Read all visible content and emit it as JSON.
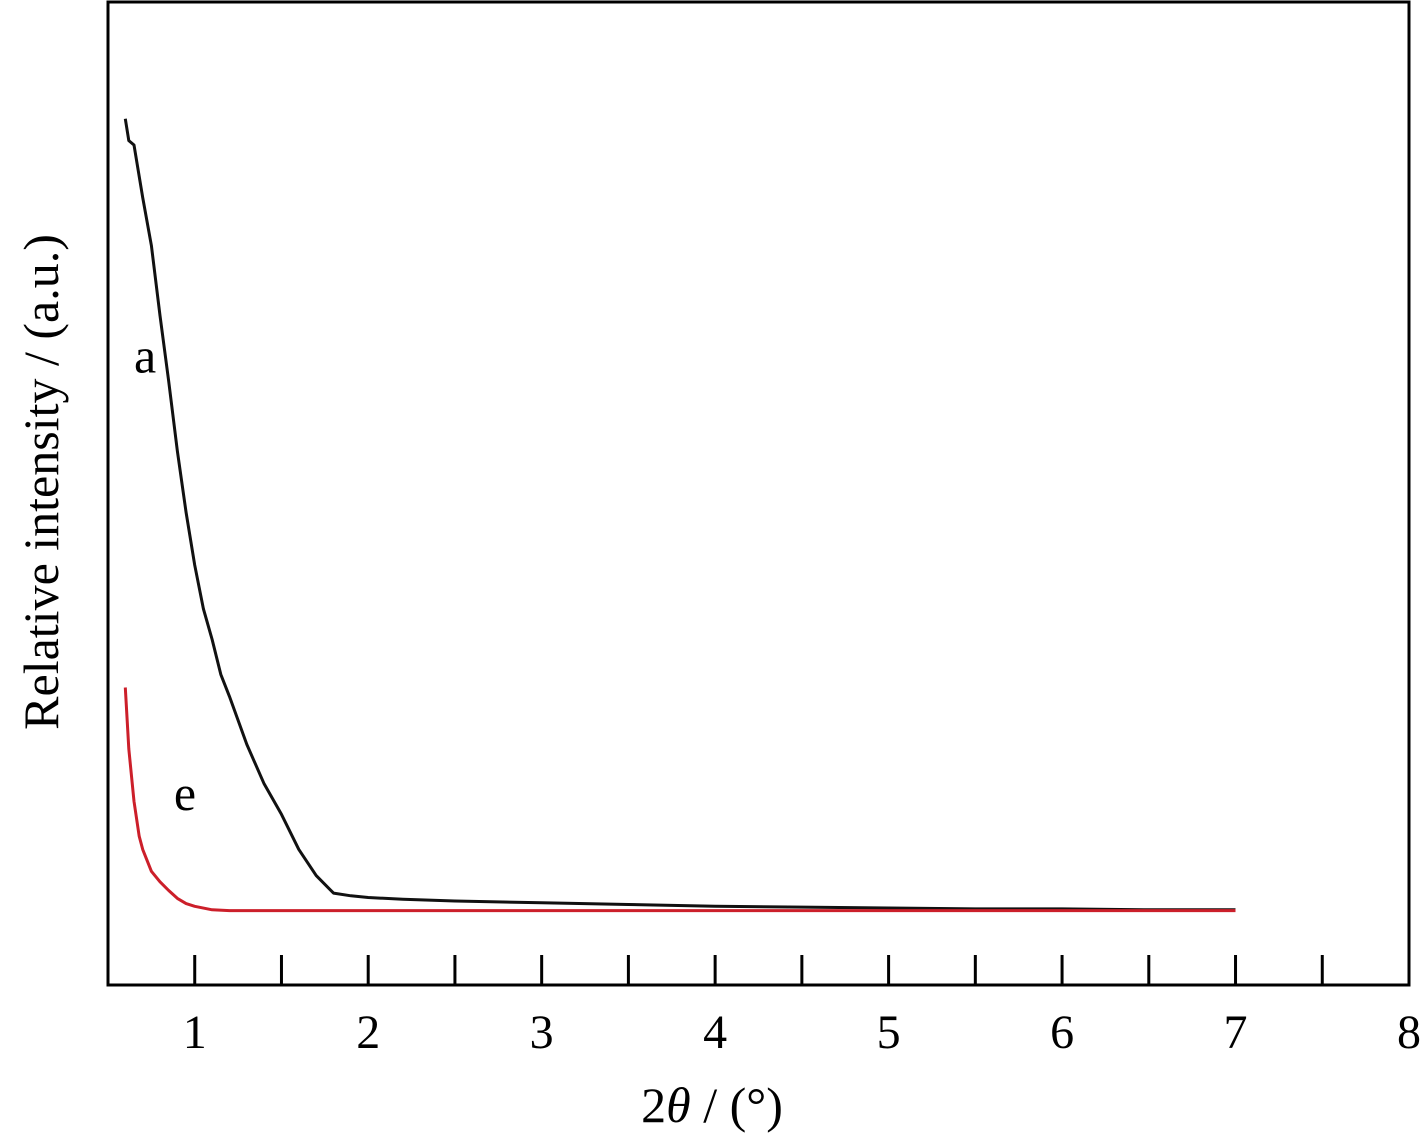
{
  "chart_data": {
    "type": "line",
    "xlabel": "2θ / (°)",
    "xlabel_parts": {
      "var": "2",
      "theta": "θ",
      "unit": " / (°)"
    },
    "ylabel": "Relative intensity / (a.u.)",
    "xlim": [
      0.5,
      8
    ],
    "ylim": [
      0,
      100
    ],
    "x_ticks_major": [
      1,
      2,
      3,
      4,
      5,
      6,
      7,
      8
    ],
    "x_ticks_minor": [
      1.5,
      2.5,
      3.5,
      4.5,
      5.5,
      6.5,
      7.5
    ],
    "y_ticks": [],
    "grid": false,
    "colors": {
      "a": "#111111",
      "e": "#cc1f2a",
      "frame": "#000000"
    },
    "series": [
      {
        "name": "a",
        "label_at": {
          "x": 0.65,
          "y": 70.0
        },
        "x": [
          0.6,
          0.62,
          0.65,
          0.7,
          0.75,
          0.8,
          0.85,
          0.9,
          0.95,
          1.0,
          1.05,
          1.1,
          1.15,
          1.2,
          1.3,
          1.4,
          1.5,
          1.6,
          1.7,
          1.8,
          1.9,
          2.0,
          2.2,
          2.5,
          3.0,
          3.5,
          4.0,
          4.5,
          5.0,
          5.5,
          6.0,
          6.5,
          7.0
        ],
        "y": [
          99.0,
          96.5,
          96.0,
          90.0,
          84.5,
          76.5,
          69.0,
          61.0,
          54.0,
          48.0,
          43.0,
          39.5,
          35.5,
          33.0,
          27.5,
          23.0,
          19.5,
          15.5,
          12.5,
          10.5,
          10.2,
          10.0,
          9.8,
          9.6,
          9.4,
          9.2,
          9.0,
          8.9,
          8.8,
          8.7,
          8.7,
          8.6,
          8.6
        ]
      },
      {
        "name": "e",
        "label_at": {
          "x": 0.88,
          "y": 20.0
        },
        "x": [
          0.6,
          0.62,
          0.65,
          0.68,
          0.7,
          0.75,
          0.8,
          0.85,
          0.9,
          0.95,
          1.0,
          1.1,
          1.2,
          1.3,
          1.5,
          2.0,
          3.0,
          4.0,
          5.0,
          6.0,
          7.0
        ],
        "y": [
          34.0,
          27.0,
          21.0,
          17.0,
          15.5,
          13.0,
          11.8,
          10.8,
          9.9,
          9.3,
          9.0,
          8.6,
          8.5,
          8.5,
          8.5,
          8.5,
          8.5,
          8.5,
          8.5,
          8.5,
          8.5
        ]
      }
    ]
  }
}
